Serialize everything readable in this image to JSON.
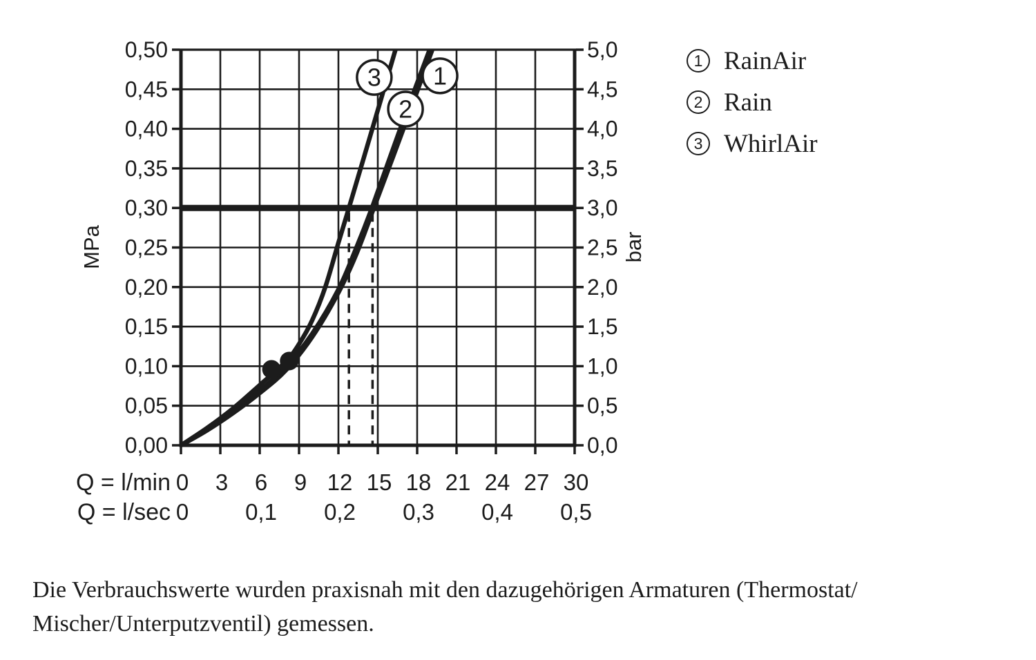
{
  "chart_data": {
    "type": "line",
    "x_axis": {
      "row1_label": "Q = l/min",
      "row1_ticks": [
        "0",
        "3",
        "6",
        "9",
        "12",
        "15",
        "18",
        "21",
        "24",
        "27",
        "30"
      ],
      "row2_label": "Q = l/sec",
      "row2_ticks": [
        "0",
        "0,1",
        "0,2",
        "0,3",
        "0,4",
        "0,5"
      ],
      "range_lmin": [
        0,
        30
      ]
    },
    "y_left": {
      "unit": "MPa",
      "ticks": [
        "0,00",
        "0,05",
        "0,10",
        "0,15",
        "0,20",
        "0,25",
        "0,30",
        "0,35",
        "0,40",
        "0,45",
        "0,50"
      ],
      "range_mpa": [
        0,
        0.5
      ]
    },
    "y_right": {
      "unit": "bar",
      "ticks": [
        "0,0",
        "0,5",
        "1,0",
        "1,5",
        "2,0",
        "2,5",
        "3,0",
        "3,5",
        "4,0",
        "4,5",
        "5,0"
      ],
      "range_bar": [
        0,
        5
      ]
    },
    "grid": "on",
    "reference_pressure": {
      "mpa": 0.3,
      "bar": 3.0
    },
    "dashed_flow_marks_lmin": [
      12.8,
      14.6
    ],
    "operating_points": [
      {
        "q_lmin": 6.9,
        "p_mpa": 0.096
      },
      {
        "q_lmin": 8.25,
        "p_mpa": 0.1065
      }
    ],
    "series": [
      {
        "num": "1",
        "name": "RainAir",
        "points": [
          [
            0,
            0
          ],
          [
            2,
            0.019
          ],
          [
            4,
            0.041
          ],
          [
            6,
            0.066
          ],
          [
            8,
            0.095
          ],
          [
            10,
            0.137
          ],
          [
            12,
            0.193
          ],
          [
            13.4,
            0.243
          ],
          [
            14.7,
            0.3
          ],
          [
            17.0,
            0.402
          ],
          [
            19.15,
            0.5
          ]
        ]
      },
      {
        "num": "2",
        "name": "Rain",
        "points": [
          [
            0,
            0
          ],
          [
            2,
            0.02
          ],
          [
            4,
            0.043
          ],
          [
            6,
            0.069
          ],
          [
            8,
            0.099
          ],
          [
            10,
            0.141
          ],
          [
            12,
            0.197
          ],
          [
            13.3,
            0.247
          ],
          [
            14.55,
            0.3
          ],
          [
            16.75,
            0.402
          ],
          [
            18.95,
            0.5
          ]
        ]
      },
      {
        "num": "3",
        "name": "WhirlAir",
        "points": [
          [
            0,
            0
          ],
          [
            2,
            0.022
          ],
          [
            4,
            0.047
          ],
          [
            6,
            0.076
          ],
          [
            8,
            0.106
          ],
          [
            9,
            0.128
          ],
          [
            10,
            0.158
          ],
          [
            11,
            0.2
          ],
          [
            12,
            0.256
          ],
          [
            12.8,
            0.3
          ],
          [
            14.6,
            0.401
          ],
          [
            16.35,
            0.5
          ]
        ]
      }
    ],
    "curve_labels": [
      {
        "series": "3",
        "q": 14.73,
        "p": 0.465
      },
      {
        "series": "1",
        "q": 19.74,
        "p": 0.467
      },
      {
        "series": "2",
        "q": 17.11,
        "p": 0.425
      }
    ],
    "ink_color": "#1c1c1c"
  },
  "legend": {
    "items": [
      {
        "num": "1",
        "label": "RainAir"
      },
      {
        "num": "2",
        "label": "Rain"
      },
      {
        "num": "3",
        "label": "WhirlAir"
      }
    ]
  },
  "footnote": {
    "line1": "Die Verbrauchswerte wurden praxisnah mit den dazugehörigen Armaturen (Thermostat/",
    "line2": "Mischer/Unterputzventil) gemessen."
  }
}
